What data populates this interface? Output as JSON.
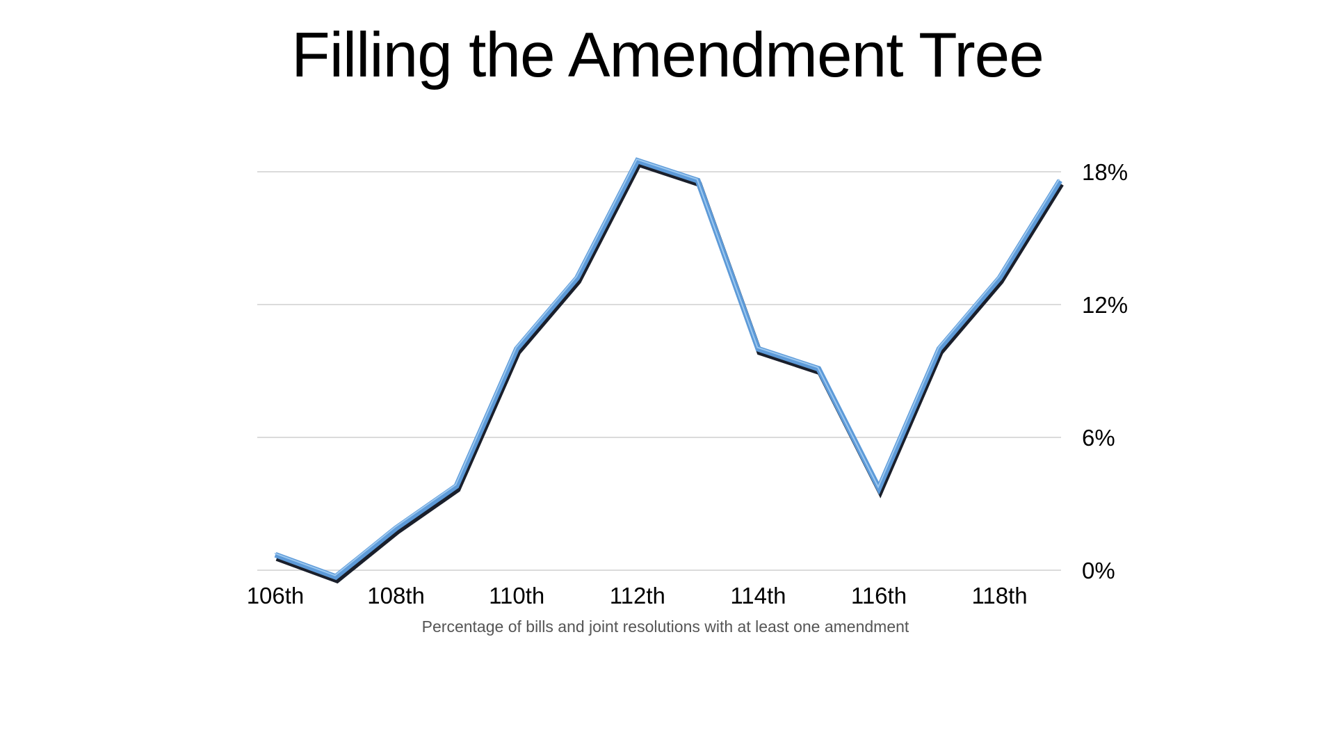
{
  "chart_data": {
    "type": "line",
    "title": "Filling the Amendment Tree",
    "caption": "Percentage of bills and joint resolutions with at least one amendment",
    "x": [
      "106th",
      "107th",
      "108th",
      "109th",
      "110th",
      "111th",
      "112th",
      "113th",
      "114th",
      "115th",
      "116th",
      "117th",
      "118th",
      "119th"
    ],
    "x_tick_labels": [
      "106th",
      "108th",
      "110th",
      "112th",
      "114th",
      "116th",
      "118th"
    ],
    "series": [
      {
        "values": [
          0.7,
          -0.3,
          1.9,
          3.8,
          10.0,
          13.2,
          18.5,
          17.6,
          10.0,
          9.1,
          3.7,
          10.0,
          13.2,
          17.6
        ]
      }
    ],
    "y_ticks": [
      0,
      6,
      12,
      18
    ],
    "y_tick_labels": [
      "0%",
      "6%",
      "12%",
      "18%"
    ],
    "ylim": [
      0,
      18
    ],
    "y_axis_side": "right",
    "grid": true,
    "line_color": "#5d9ad8",
    "line_shadow_color": "#1a1f2b",
    "grid_color": "#cfcfcf"
  }
}
